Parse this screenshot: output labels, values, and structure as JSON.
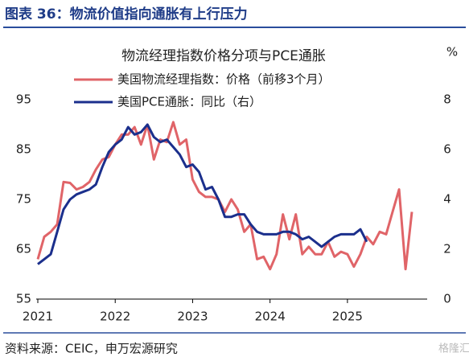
{
  "header": "图表 36：物流价值指向通胀有上行压力",
  "source": "资料来源：CEIC，申万宏源研究",
  "watermark": "格隆汇",
  "chart_data": {
    "type": "line",
    "title": "物流经理指数价格分项与PCE通胀",
    "y2_unit": "%",
    "xlim": [
      2021,
      2026.03
    ],
    "xticks": [
      2021,
      2022,
      2023,
      2024,
      2025
    ],
    "ylim": [
      55,
      95
    ],
    "yticks": [
      55,
      65,
      75,
      85,
      95
    ],
    "y2lim": [
      0,
      8
    ],
    "y2ticks": [
      0,
      2,
      4,
      6,
      8
    ],
    "series": [
      {
        "name": "美国物流经理指数：价格（前移3个月）",
        "color": "#e06468",
        "x": [
          2021,
          2021.083,
          2021.167,
          2021.25,
          2021.333,
          2021.417,
          2021.5,
          2021.583,
          2021.667,
          2021.75,
          2021.833,
          2021.917,
          2022,
          2022.083,
          2022.167,
          2022.25,
          2022.333,
          2022.417,
          2022.5,
          2022.583,
          2022.667,
          2022.75,
          2022.833,
          2022.917,
          2023,
          2023.083,
          2023.167,
          2023.25,
          2023.333,
          2023.417,
          2023.5,
          2023.583,
          2023.667,
          2023.75,
          2023.833,
          2023.917,
          2024,
          2024.083,
          2024.167,
          2024.25,
          2024.333,
          2024.417,
          2024.5,
          2024.583,
          2024.667,
          2024.75,
          2024.833,
          2024.917,
          2025,
          2025.083,
          2025.167,
          2025.25,
          2025.333,
          2025.417,
          2025.5,
          2025.583,
          2025.667,
          2025.75,
          2025.833
        ],
        "values": [
          63,
          67.5,
          68.5,
          70,
          78.5,
          78.3,
          77,
          77.5,
          78.5,
          81,
          83,
          83.5,
          86,
          88,
          88,
          89.5,
          86,
          90,
          83,
          87,
          86.5,
          90.5,
          86,
          87,
          79,
          76.5,
          75.5,
          75.5,
          75,
          72.5,
          75,
          73,
          68.5,
          70,
          63,
          63.5,
          61,
          64,
          72,
          67,
          72,
          64,
          65.5,
          64,
          64,
          66.5,
          63.5,
          64.5,
          64,
          61.5,
          64,
          67.5,
          66,
          68.5,
          68,
          72.5,
          77,
          61,
          72.5
        ]
      },
      {
        "name": "美国PCE通胀：同比（右）",
        "color": "#1b2f8c",
        "axis": "y2",
        "x": [
          2021,
          2021.083,
          2021.167,
          2021.25,
          2021.333,
          2021.417,
          2021.5,
          2021.583,
          2021.667,
          2021.75,
          2021.833,
          2021.917,
          2022,
          2022.083,
          2022.167,
          2022.25,
          2022.333,
          2022.417,
          2022.5,
          2022.583,
          2022.667,
          2022.75,
          2022.833,
          2022.917,
          2023,
          2023.083,
          2023.167,
          2023.25,
          2023.333,
          2023.417,
          2023.5,
          2023.583,
          2023.667,
          2023.75,
          2023.833,
          2023.917,
          2024,
          2024.083,
          2024.167,
          2024.25,
          2024.333,
          2024.417,
          2024.5,
          2024.583,
          2024.667,
          2024.75,
          2024.833,
          2024.917,
          2025,
          2025.083,
          2025.167,
          2025.25
        ],
        "values": [
          1.4,
          1.6,
          1.8,
          2.7,
          3.6,
          4.0,
          4.2,
          4.3,
          4.4,
          4.6,
          5.3,
          5.9,
          6.2,
          6.4,
          6.9,
          6.6,
          6.7,
          7.0,
          6.5,
          6.3,
          6.4,
          6.1,
          5.8,
          5.3,
          5.4,
          5.1,
          4.4,
          4.5,
          4.0,
          3.3,
          3.3,
          3.4,
          3.4,
          3.0,
          2.7,
          2.6,
          2.6,
          2.6,
          2.7,
          2.7,
          2.6,
          2.4,
          2.5,
          2.3,
          2.1,
          2.3,
          2.5,
          2.6,
          2.6,
          2.6,
          2.8,
          2.3
        ]
      }
    ]
  }
}
